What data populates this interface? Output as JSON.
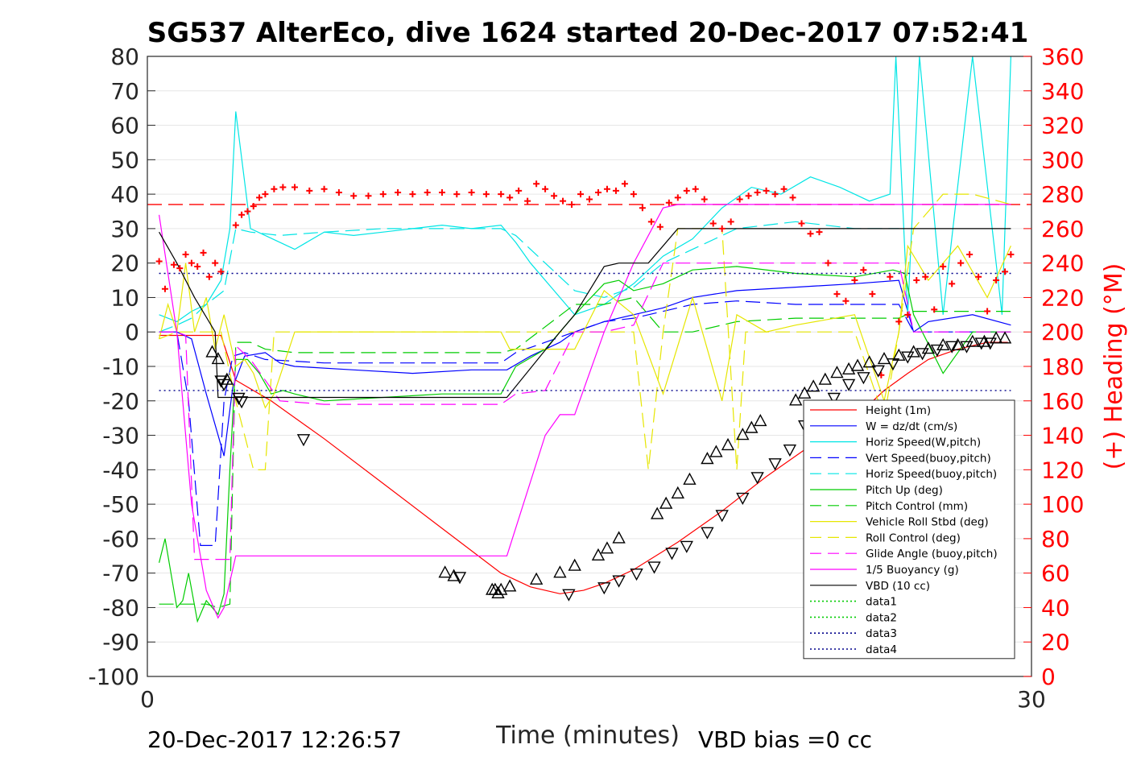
{
  "chart_data": {
    "type": "line",
    "title": "SG537 AlterEco, dive 1624 started 20-Dec-2017 07:52:41",
    "xlabel": "Time (minutes)",
    "ylabel": "",
    "y2label": "(+) Heading (°M)",
    "xlim": [
      0,
      30
    ],
    "ylim": [
      -100,
      80
    ],
    "y2lim": [
      0,
      360
    ],
    "x_ticks": [
      "0",
      "30"
    ],
    "y_ticks": [
      "80",
      "70",
      "60",
      "50",
      "40",
      "30",
      "20",
      "10",
      "0",
      "-10",
      "-20",
      "-30",
      "-40",
      "-50",
      "-60",
      "-70",
      "-80",
      "-90",
      "-100"
    ],
    "y2_ticks": [
      "360",
      "340",
      "320",
      "300",
      "280",
      "260",
      "240",
      "220",
      "200",
      "180",
      "160",
      "140",
      "120",
      "100",
      "80",
      "60",
      "40",
      "20",
      "0"
    ],
    "grid": true,
    "legend_position": "bottom-right",
    "footer_left": "20-Dec-2017 12:26:57",
    "footer_right": "VBD bias =0 cc",
    "colors": {
      "red": "#ff0000",
      "blue": "#0000ff",
      "cyan": "#00e5e5",
      "green": "#00cc00",
      "yellow": "#e6e600",
      "magenta": "#ff00ff",
      "black": "#000000",
      "navy": "#00008b"
    },
    "series": [
      {
        "name": "Height (1m)",
        "color": "red",
        "style": "solid",
        "x": [
          0.4,
          2.5,
          3.0,
          4.2,
          6.0,
          8.0,
          10.0,
          12.0,
          13.0,
          14.0,
          14.8,
          15.5,
          16.5,
          18.0,
          19.5,
          21.0,
          22.5,
          24.0,
          25.0,
          25.8,
          26.5,
          27.5,
          28.5,
          29.2
        ],
        "y": [
          -1,
          -1,
          -14,
          -20,
          -31,
          -44,
          -57,
          -70,
          -74,
          -76,
          -75,
          -73,
          -69,
          -61,
          -52,
          -42,
          -33,
          -25,
          -17,
          -12,
          -8,
          -5,
          -3,
          -3
        ]
      },
      {
        "name": "W = dz/dt (cm/s)",
        "color": "blue",
        "style": "solid",
        "x": [
          0.4,
          1.0,
          1.5,
          2.0,
          2.6,
          2.9,
          3.3,
          4.0,
          4.5,
          5.0,
          7.0,
          9.0,
          11.0,
          12.2,
          13.0,
          14.0,
          14.5,
          15.5,
          16.5,
          17.5,
          18.5,
          20.0,
          22.0,
          24.0,
          25.5,
          26.0,
          26.5,
          28.0,
          29.3
        ],
        "y": [
          0,
          0,
          -2,
          -18,
          -36,
          -16,
          -7,
          -6,
          -9,
          -10,
          -11,
          -12,
          -11,
          -11,
          -7,
          -3,
          0,
          3,
          5,
          7,
          10,
          12,
          13,
          14,
          15,
          0,
          3,
          5,
          2
        ]
      },
      {
        "name": "Horiz Speed(W,pitch)",
        "color": "cyan",
        "style": "solid",
        "x": [
          0.4,
          1.0,
          1.5,
          2.0,
          2.5,
          2.8,
          3.0,
          3.5,
          4.0,
          5.0,
          6.0,
          7.0,
          8.0,
          9.0,
          10.0,
          11.0,
          12.0,
          12.5,
          13.0,
          13.8,
          14.5,
          15.5,
          16.5,
          17.5,
          18.5,
          19.5,
          20.5,
          21.5,
          22.5,
          23.5,
          24.5,
          25.2,
          25.4,
          25.8,
          26.2,
          27.0,
          28.0,
          29.0,
          29.3
        ],
        "y": [
          5,
          3,
          6,
          8,
          15,
          30,
          64,
          30,
          28,
          24,
          29,
          28,
          29,
          30,
          31,
          30,
          31,
          26,
          20,
          12,
          5,
          8,
          14,
          22,
          27,
          36,
          42,
          40,
          45,
          42,
          38,
          40,
          80,
          5,
          80,
          5,
          80,
          5,
          80
        ]
      },
      {
        "name": "Vert Speed(buoy,pitch)",
        "color": "blue",
        "style": "dashed",
        "x": [
          0.4,
          1.0,
          1.4,
          1.8,
          2.3,
          2.6,
          2.9,
          3.3,
          4.0,
          6.0,
          8.0,
          10.0,
          12.0,
          12.5,
          13.5,
          14.5,
          15.5,
          16.5,
          17.5,
          18.5,
          20.0,
          22.0,
          24.0,
          25.5,
          26.0,
          27.0,
          29.3
        ],
        "y": [
          0,
          0,
          -20,
          -62,
          -62,
          -20,
          -7,
          -6,
          -8,
          -9,
          -9,
          -9,
          -9,
          -6,
          -3,
          0,
          3,
          4,
          6,
          8,
          9,
          8,
          8,
          8,
          0,
          0,
          0
        ]
      },
      {
        "name": "Horiz Speed(buoy,pitch)",
        "color": "cyan",
        "style": "dashed",
        "x": [
          0.4,
          1.0,
          1.5,
          2.0,
          2.6,
          3.0,
          3.5,
          4.5,
          6.0,
          8.0,
          10.0,
          12.0,
          12.5,
          13.5,
          14.5,
          15.5,
          16.5,
          17.5,
          18.5,
          20.0,
          22.0,
          24.0,
          25.5
        ],
        "y": [
          0,
          2,
          4,
          8,
          12,
          30,
          29,
          28,
          29,
          30,
          30,
          30,
          28,
          20,
          12,
          10,
          13,
          20,
          24,
          30,
          32,
          30,
          30
        ]
      },
      {
        "name": "Pitch Up (deg)",
        "color": "green",
        "style": "solid",
        "x": [
          0.4,
          0.6,
          0.8,
          1.0,
          1.2,
          1.4,
          1.7,
          2.0,
          2.2,
          2.4,
          2.6,
          2.8,
          3.0,
          3.4,
          3.8,
          4.2,
          4.6,
          5.0,
          6.0,
          8.0,
          10.0,
          12.0,
          12.5,
          13.5,
          14.5,
          15.5,
          16.0,
          16.5,
          17.5,
          18.5,
          20.0,
          22.0,
          24.0,
          25.3,
          25.7,
          26.0,
          27.0,
          28.0,
          29.3
        ],
        "y": [
          -67,
          -60,
          -70,
          -80,
          -78,
          -70,
          -84,
          -78,
          -80,
          -82,
          -76,
          -40,
          -8,
          -8,
          -12,
          -18,
          -17,
          -18,
          -20,
          -19,
          -18,
          -18,
          -10,
          -5,
          5,
          14,
          15,
          12,
          14,
          18,
          19,
          17,
          16,
          18,
          17,
          5,
          -12,
          0,
          0
        ]
      },
      {
        "name": "Pitch Control (mm)",
        "color": "green",
        "style": "dashed",
        "x": [
          0.4,
          1.2,
          2.0,
          2.4,
          2.8,
          3.0,
          3.5,
          4.0,
          5.0,
          8.0,
          10.0,
          12.0,
          12.5,
          14.5,
          15.0,
          15.5,
          16.5,
          17.5,
          18.5,
          20.0,
          22.0,
          24.0,
          25.5,
          26.0,
          29.3
        ],
        "y": [
          -79,
          -79,
          -79,
          -80,
          -79,
          -3,
          -3,
          -5,
          -6,
          -6,
          -6,
          -6,
          -5,
          8,
          8,
          8,
          10,
          0,
          0,
          3,
          4,
          4,
          4,
          6,
          6
        ]
      },
      {
        "name": "Vehicle Roll Stbd (deg)",
        "color": "yellow",
        "style": "solid",
        "x": [
          0.4,
          0.7,
          1.0,
          1.3,
          1.6,
          2.0,
          2.3,
          2.6,
          3.0,
          3.3,
          3.6,
          4.0,
          4.3,
          5.0,
          8.0,
          10.0,
          12.0,
          12.3,
          13.5,
          14.5,
          15.5,
          16.5,
          17.5,
          18.5,
          19.0,
          19.5,
          20.0,
          21.0,
          22.0,
          24.0,
          25.0,
          25.5,
          25.8,
          26.5,
          27.5,
          28.5,
          29.3
        ],
        "y": [
          -2,
          8,
          0,
          20,
          0,
          10,
          -5,
          5,
          -10,
          -8,
          -12,
          -22,
          -18,
          0,
          0,
          0,
          0,
          -5,
          -5,
          -5,
          12,
          5,
          -18,
          10,
          -5,
          -20,
          5,
          0,
          2,
          5,
          -20,
          0,
          25,
          15,
          25,
          10,
          25
        ]
      },
      {
        "name": "Roll Control (deg)",
        "color": "yellow",
        "style": "dashed",
        "x": [
          0.4,
          1.0,
          2.0,
          2.5,
          3.0,
          3.6,
          4.0,
          4.3,
          5.0,
          8.0,
          10.0,
          12.0,
          12.5,
          14.0,
          15.0,
          16.5,
          17.0,
          17.5,
          18.0,
          19.5,
          20.0,
          20.3,
          21.0,
          22.0,
          24.0,
          25.0,
          25.5,
          26.0,
          27.0,
          28.0,
          29.3
        ],
        "y": [
          -2,
          0,
          0,
          0,
          -20,
          -40,
          -40,
          0,
          0,
          0,
          0,
          0,
          0,
          0,
          0,
          0,
          -40,
          0,
          30,
          30,
          -40,
          0,
          0,
          0,
          0,
          -25,
          0,
          30,
          40,
          40,
          37
        ]
      },
      {
        "name": "Glide Angle (buoy,pitch)",
        "color": "magenta",
        "style": "dashed",
        "x": [
          0.4,
          1.0,
          1.3,
          1.6,
          2.0,
          2.5,
          2.8,
          3.0,
          3.5,
          4.5,
          6.0,
          8.0,
          10.0,
          12.0,
          12.5,
          13.5,
          14.5,
          15.5,
          16.5,
          17.5,
          18.5,
          20.0,
          22.0,
          24.0,
          25.5,
          26.0,
          29.3
        ],
        "y": [
          0,
          0,
          -1,
          -66,
          -66,
          -66,
          -66,
          -4,
          -8,
          -20,
          -21,
          -21,
          -21,
          -21,
          -18,
          -17,
          0,
          0,
          2,
          20,
          20,
          20,
          20,
          20,
          20,
          0,
          0
        ]
      },
      {
        "name": "1/5 Buoyancy (g)",
        "color": "magenta",
        "style": "solid",
        "x": [
          0.4,
          1.0,
          1.5,
          2.0,
          2.4,
          2.6,
          3.0,
          4.0,
          6.0,
          8.0,
          10.0,
          12.2,
          13.5,
          14.0,
          14.5,
          15.5,
          16.5,
          17.5,
          18.0,
          20.0,
          22.0,
          24.0,
          26.0,
          29.3
        ],
        "y": [
          34,
          0,
          -50,
          -75,
          -83,
          -80,
          -65,
          -65,
          -65,
          -65,
          -65,
          -65,
          -30,
          -24,
          -24,
          0,
          20,
          36,
          37,
          37,
          37,
          37,
          37,
          37
        ]
      },
      {
        "name": "VBD (10 cc)",
        "color": "black",
        "style": "solid",
        "x": [
          0.4,
          1.0,
          1.6,
          2.3,
          2.4,
          3.0,
          8.0,
          12.2,
          14.0,
          14.5,
          15.5,
          16.0,
          17.0,
          17.5,
          18.0,
          20.0,
          24.0,
          29.3
        ],
        "y": [
          29,
          20,
          10,
          0,
          -19,
          -19,
          -19,
          -19,
          0,
          5,
          19,
          20,
          20,
          25,
          30,
          30,
          30,
          30
        ]
      },
      {
        "name": "data1",
        "color": "green",
        "style": "dotted",
        "x": [],
        "y": []
      },
      {
        "name": "data2",
        "color": "green",
        "style": "dotted",
        "x": [],
        "y": []
      },
      {
        "name": "data3",
        "color": "navy",
        "style": "dotted",
        "x": [
          0.4,
          29.3
        ],
        "y": [
          17,
          17
        ]
      },
      {
        "name": "data4",
        "color": "navy",
        "style": "dotted",
        "x": [
          0.4,
          29.3
        ],
        "y": [
          -17,
          -17
        ]
      }
    ],
    "heading_reference": {
      "color": "red",
      "style": "dashed",
      "y2": 274
    },
    "heading": {
      "color": "red",
      "x": [
        0.4,
        0.6,
        0.9,
        1.1,
        1.3,
        1.5,
        1.7,
        1.9,
        2.1,
        2.3,
        2.5,
        3.0,
        3.2,
        3.4,
        3.6,
        3.8,
        4.0,
        4.3,
        4.6,
        5.0,
        5.5,
        6.0,
        6.5,
        7.0,
        7.5,
        8.0,
        8.5,
        9.0,
        9.5,
        10.0,
        10.5,
        11.0,
        11.5,
        12.0,
        12.3,
        12.6,
        12.9,
        13.2,
        13.5,
        13.8,
        14.1,
        14.4,
        14.7,
        15.0,
        15.3,
        15.6,
        15.9,
        16.2,
        16.5,
        16.8,
        17.1,
        17.4,
        17.7,
        18.0,
        18.3,
        18.6,
        18.9,
        19.2,
        19.5,
        19.8,
        20.1,
        20.4,
        20.7,
        21.0,
        21.3,
        21.6,
        21.9,
        22.2,
        22.5,
        22.8,
        23.1,
        23.4,
        23.7,
        24.0,
        24.3,
        24.6,
        24.9,
        25.2,
        25.5,
        25.8,
        26.1,
        26.4,
        26.7,
        27.0,
        27.3,
        27.6,
        27.9,
        28.2,
        28.5,
        28.8,
        29.1,
        29.3
      ],
      "y2": [
        241,
        225,
        239,
        237,
        245,
        240,
        238,
        246,
        232,
        240,
        235,
        262,
        268,
        270,
        273,
        278,
        280,
        283,
        284,
        284,
        282,
        283,
        281,
        279,
        279,
        280,
        281,
        280,
        281,
        281,
        280,
        281,
        280,
        280,
        278,
        282,
        276,
        286,
        283,
        279,
        276,
        274,
        280,
        277,
        281,
        283,
        282,
        286,
        280,
        272,
        264,
        261,
        275,
        278,
        282,
        283,
        277,
        263,
        260,
        264,
        277,
        279,
        281,
        282,
        280,
        283,
        278,
        263,
        257,
        258,
        240,
        222,
        218,
        230,
        236,
        222,
        175,
        232,
        206,
        210,
        230,
        232,
        213,
        238,
        228,
        240,
        245,
        232,
        212,
        230,
        235,
        245
      ]
    },
    "markers": {
      "up": {
        "x": [
          2.2,
          2.4,
          2.7,
          10.1,
          10.4,
          11.7,
          11.8,
          11.9,
          12.0,
          12.3,
          13.2,
          14.0,
          14.5,
          15.3,
          15.6,
          16.0,
          17.3,
          17.6,
          18.0,
          18.4,
          19.0,
          19.3,
          19.7,
          20.2,
          20.5,
          20.8,
          22.0,
          22.3,
          22.6,
          23.0,
          23.4,
          23.8,
          24.1,
          24.5,
          25.0,
          25.5,
          26.0,
          26.5,
          27.0,
          27.5,
          28.0,
          28.4,
          28.8,
          29.1
        ],
        "y": [
          -6,
          -8,
          -14,
          -70,
          -71,
          -75,
          -75,
          -76,
          -75,
          -74,
          -72,
          -70,
          -68,
          -65,
          -63,
          -60,
          -53,
          -50,
          -47,
          -43,
          -37,
          -35,
          -33,
          -30,
          -28,
          -26,
          -20,
          -18,
          -16,
          -14,
          -12,
          -11,
          -10,
          -9,
          -8,
          -7,
          -6,
          -5,
          -4,
          -4,
          -3,
          -3,
          -2,
          -2
        ]
      },
      "down": {
        "x": [
          2.5,
          2.6,
          3.1,
          3.2,
          5.3,
          10.6,
          14.3,
          15.5,
          16.0,
          16.6,
          17.2,
          17.8,
          18.3,
          19.0,
          19.5,
          20.2,
          20.7,
          21.3,
          21.8,
          22.3,
          22.8,
          23.3,
          23.8,
          24.3,
          24.8,
          25.3,
          25.8,
          26.3,
          26.8,
          27.3,
          27.8,
          28.3,
          28.6
        ],
        "y": [
          -14,
          -15,
          -19,
          -20,
          -31,
          -71,
          -76,
          -74,
          -72,
          -70,
          -68,
          -64,
          -62,
          -58,
          -53,
          -48,
          -42,
          -38,
          -34,
          -27,
          -23,
          -19,
          -15,
          -13,
          -11,
          -9,
          -7,
          -6,
          -5,
          -4,
          -4,
          -3,
          -3
        ]
      }
    }
  }
}
